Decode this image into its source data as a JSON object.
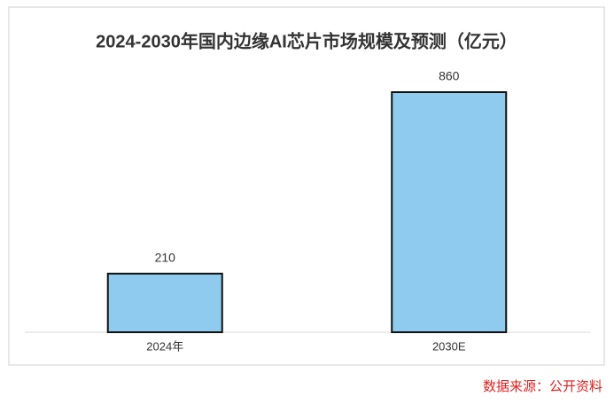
{
  "chart_data": {
    "type": "bar",
    "title": "2024-2030年国内边缘AI芯片市场规模及预测（亿元）",
    "categories": [
      "2024年",
      "2030E"
    ],
    "values": [
      210,
      860
    ],
    "color": "#8ecbef",
    "source": "数据来源：公开资料"
  }
}
